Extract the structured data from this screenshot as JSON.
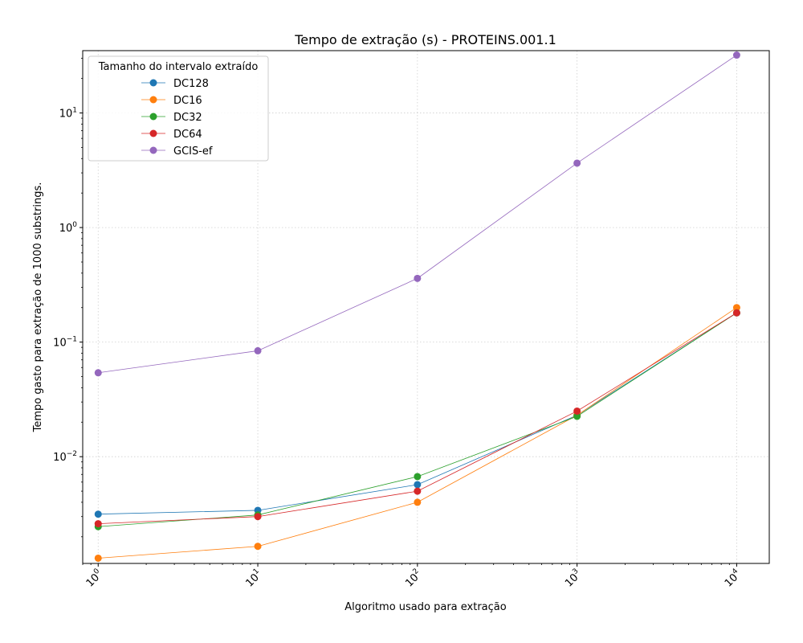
{
  "chart_data": {
    "type": "line",
    "title": "Tempo de extração (s) - PROTEINS.001.1",
    "xlabel": "Algoritmo usado para extração",
    "ylabel": "Tempo gasto para extração de 1000 substrings.",
    "x_scale": "log",
    "y_scale": "log",
    "xlim": [
      0.8,
      16000
    ],
    "ylim": [
      0.00117,
      35
    ],
    "x": [
      1,
      10,
      100,
      1000,
      10000
    ],
    "x_ticks": [
      {
        "value": 1,
        "base": "10",
        "exp": "0"
      },
      {
        "value": 10,
        "base": "10",
        "exp": "1"
      },
      {
        "value": 100,
        "base": "10",
        "exp": "2"
      },
      {
        "value": 1000,
        "base": "10",
        "exp": "3"
      },
      {
        "value": 10000,
        "base": "10",
        "exp": "4"
      }
    ],
    "y_ticks": [
      {
        "value": 0.01,
        "base": "10",
        "exp": "−2"
      },
      {
        "value": 0.1,
        "base": "10",
        "exp": "−1"
      },
      {
        "value": 1,
        "base": "10",
        "exp": "0"
      },
      {
        "value": 10,
        "base": "10",
        "exp": "1"
      }
    ],
    "grid": true,
    "legend": {
      "title": "Tamanho do intervalo extraído",
      "placement": "top-left"
    },
    "series": [
      {
        "name": "DC128",
        "color": "#1f77b4",
        "values": [
          0.00315,
          0.0034,
          0.0057,
          0.023,
          0.18
        ]
      },
      {
        "name": "DC16",
        "color": "#ff7f0e",
        "values": [
          0.0013,
          0.00165,
          0.004,
          0.023,
          0.2
        ]
      },
      {
        "name": "DC32",
        "color": "#2ca02c",
        "values": [
          0.00245,
          0.0031,
          0.0067,
          0.0225,
          0.18
        ]
      },
      {
        "name": "DC64",
        "color": "#d62728",
        "values": [
          0.0026,
          0.003,
          0.005,
          0.025,
          0.18
        ]
      },
      {
        "name": "GCIS-ef",
        "color": "#9467bd",
        "values": [
          0.054,
          0.084,
          0.36,
          3.65,
          32
        ]
      }
    ]
  }
}
